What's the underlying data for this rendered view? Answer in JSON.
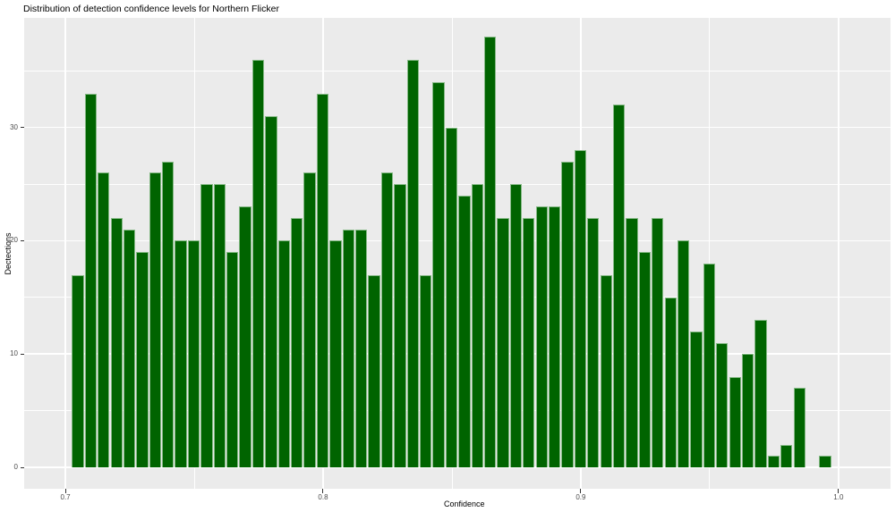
{
  "chart_data": {
    "type": "bar",
    "subtype": "histogram",
    "title": "Distribution of detection confidence levels for Northern Flicker",
    "xlabel": "Confidence",
    "ylabel": "Dectections",
    "bin_width": 0.005,
    "bin_start": 0.7025,
    "counts": [
      17,
      33,
      26,
      22,
      21,
      19,
      26,
      27,
      20,
      20,
      25,
      25,
      19,
      23,
      36,
      31,
      20,
      22,
      26,
      33,
      20,
      21,
      21,
      17,
      26,
      25,
      36,
      17,
      34,
      30,
      24,
      25,
      38,
      22,
      25,
      22,
      23,
      23,
      27,
      28,
      22,
      17,
      32,
      22,
      19,
      22,
      15,
      20,
      12,
      18,
      11,
      8,
      10,
      13,
      1,
      2,
      7,
      0,
      1
    ],
    "x_ticks": [
      0.7,
      0.8,
      0.9,
      1.0
    ],
    "x_tick_labels": [
      "0.7",
      "0.8",
      "0.9",
      "1.0"
    ],
    "x_minor_ticks": [
      0.75,
      0.85,
      0.95
    ],
    "y_ticks": [
      0,
      10,
      20,
      30
    ],
    "y_tick_labels": [
      "0",
      "10",
      "20",
      "30"
    ],
    "y_minor_ticks": [
      5,
      15,
      25,
      35
    ],
    "xlim": [
      0.684,
      1.0202
    ],
    "ylim": [
      -1.89,
      39.67
    ],
    "grid": "on",
    "legend": "none",
    "colors": {
      "bar_fill": "#006400",
      "bar_edge": "#84b884",
      "panel_background": "#EBEBEB",
      "gridline": "#FFFFFF",
      "tick_text": "#4D4D4D",
      "axis_title_text": "#000000",
      "title_text": "#000000"
    }
  }
}
